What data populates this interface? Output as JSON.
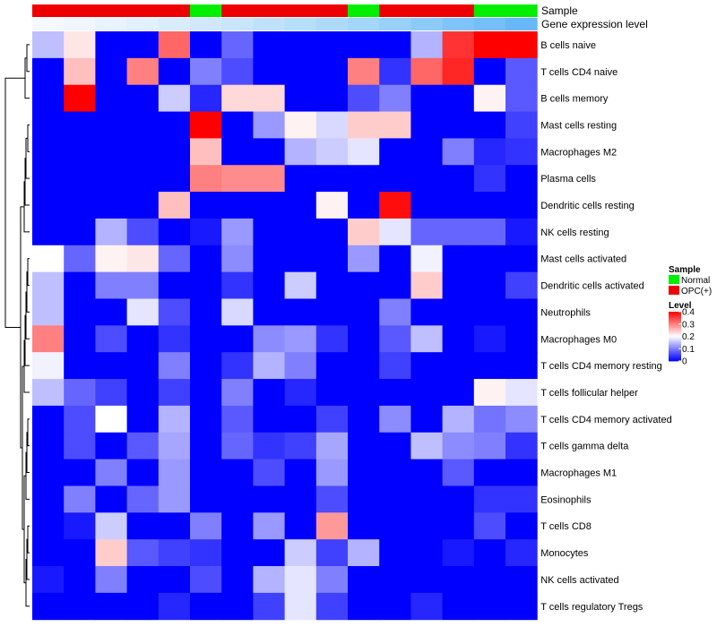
{
  "chart_data": {
    "type": "heatmap",
    "annotation_tracks": [
      "Sample",
      "Gene expression level"
    ],
    "sample_groups": [
      "OPC(+)",
      "OPC(+)",
      "OPC(+)",
      "OPC(+)",
      "OPC(+)",
      "Normal",
      "OPC(+)",
      "OPC(+)",
      "OPC(+)",
      "OPC(+)",
      "Normal",
      "OPC(+)",
      "OPC(+)",
      "OPC(+)",
      "Normal",
      "Normal"
    ],
    "expression_level_colors": [
      "#f4f9ff",
      "#eef6fe",
      "#e7f3fd",
      "#e0f0fc",
      "#d8ecfb",
      "#d0e8fa",
      "#c8e5f9",
      "#c0e2f8",
      "#b6dff8",
      "#aedaf8",
      "#a4d6f8",
      "#98d1f8",
      "#8ccbf8",
      "#7fc4f8",
      "#74bff8",
      "#68b8f8"
    ],
    "rows": [
      "B cells naive",
      "T cells CD4 naive",
      "B cells memory",
      "Mast cells resting",
      "Macrophages M2",
      "Plasma cells",
      "Dendritic cells resting",
      "NK cells resting",
      "Mast cells activated",
      "Dendritic cells activated",
      "Neutrophils",
      "Macrophages M0",
      "T cells CD4 memory resting",
      "T cells follicular helper",
      "T cells CD4 memory activated",
      "T cells gamma delta",
      "Macrophages M1",
      "Eosinophils",
      "T cells CD8",
      "Monocytes",
      "NK cells activated",
      "T cells regulatory  Tregs"
    ],
    "values": [
      [
        0.15,
        0.22,
        0.0,
        0.0,
        0.32,
        0.0,
        0.08,
        0.0,
        0.0,
        0.0,
        0.0,
        0.0,
        0.14,
        0.36,
        0.4,
        0.4
      ],
      [
        0.0,
        0.25,
        0.0,
        0.3,
        0.0,
        0.1,
        0.06,
        0.0,
        0.0,
        0.0,
        0.3,
        0.04,
        0.32,
        0.37,
        0.0,
        0.07
      ],
      [
        0.0,
        0.4,
        0.0,
        0.0,
        0.16,
        0.03,
        0.23,
        0.23,
        0.0,
        0.0,
        0.06,
        0.1,
        0.0,
        0.0,
        0.21,
        0.07
      ],
      [
        0.0,
        0.0,
        0.0,
        0.0,
        0.0,
        0.4,
        0.0,
        0.12,
        0.21,
        0.17,
        0.24,
        0.24,
        0.0,
        0.0,
        0.0,
        0.05
      ],
      [
        0.0,
        0.0,
        0.0,
        0.0,
        0.0,
        0.25,
        0.0,
        0.0,
        0.14,
        0.16,
        0.18,
        0.0,
        0.0,
        0.1,
        0.03,
        0.04
      ],
      [
        0.0,
        0.0,
        0.0,
        0.0,
        0.0,
        0.3,
        0.29,
        0.29,
        0.0,
        0.0,
        0.0,
        0.0,
        0.0,
        0.0,
        0.04,
        0.0
      ],
      [
        0.0,
        0.0,
        0.0,
        0.0,
        0.25,
        0.0,
        0.0,
        0.0,
        0.0,
        0.21,
        0.0,
        0.39,
        0.0,
        0.0,
        0.0,
        0.0
      ],
      [
        0.0,
        0.0,
        0.14,
        0.06,
        0.0,
        0.02,
        0.12,
        0.0,
        0.0,
        0.0,
        0.24,
        0.18,
        0.08,
        0.08,
        0.08,
        0.02
      ],
      [
        0.2,
        0.08,
        0.21,
        0.22,
        0.08,
        0.0,
        0.11,
        0.0,
        0.0,
        0.0,
        0.12,
        0.0,
        0.19,
        0.0,
        0.0,
        0.0
      ],
      [
        0.15,
        0.0,
        0.1,
        0.1,
        0.0,
        0.0,
        0.04,
        0.0,
        0.16,
        0.0,
        0.0,
        0.0,
        0.24,
        0.0,
        0.0,
        0.05
      ],
      [
        0.15,
        0.0,
        0.0,
        0.18,
        0.06,
        0.0,
        0.17,
        0.0,
        0.0,
        0.0,
        0.0,
        0.1,
        0.0,
        0.0,
        0.0,
        0.0
      ],
      [
        0.3,
        0.0,
        0.06,
        0.0,
        0.04,
        0.0,
        0.0,
        0.11,
        0.12,
        0.04,
        0.0,
        0.07,
        0.15,
        0.0,
        0.02,
        0.0
      ],
      [
        0.19,
        0.0,
        0.0,
        0.0,
        0.1,
        0.0,
        0.04,
        0.14,
        0.1,
        0.0,
        0.0,
        0.05,
        0.0,
        0.0,
        0.0,
        0.0
      ],
      [
        0.15,
        0.08,
        0.05,
        0.0,
        0.05,
        0.0,
        0.1,
        0.0,
        0.03,
        0.0,
        0.0,
        0.0,
        0.0,
        0.0,
        0.21,
        0.18
      ],
      [
        0.0,
        0.06,
        0.2,
        0.0,
        0.14,
        0.0,
        0.07,
        0.0,
        0.0,
        0.05,
        0.0,
        0.11,
        0.0,
        0.14,
        0.09,
        0.11
      ],
      [
        0.0,
        0.06,
        0.0,
        0.07,
        0.13,
        0.0,
        0.08,
        0.04,
        0.05,
        0.13,
        0.0,
        0.0,
        0.15,
        0.11,
        0.1,
        0.04
      ],
      [
        0.0,
        0.0,
        0.1,
        0.0,
        0.12,
        0.0,
        0.0,
        0.06,
        0.0,
        0.12,
        0.0,
        0.0,
        0.0,
        0.07,
        0.0,
        0.0
      ],
      [
        0.0,
        0.1,
        0.0,
        0.08,
        0.12,
        0.0,
        0.0,
        0.0,
        0.0,
        0.06,
        0.0,
        0.0,
        0.0,
        0.0,
        0.04,
        0.04
      ],
      [
        0.0,
        0.02,
        0.16,
        0.0,
        0.0,
        0.1,
        0.0,
        0.12,
        0.0,
        0.28,
        0.0,
        0.0,
        0.0,
        0.0,
        0.06,
        0.0
      ],
      [
        0.0,
        0.0,
        0.24,
        0.07,
        0.05,
        0.04,
        0.0,
        0.0,
        0.16,
        0.05,
        0.14,
        0.0,
        0.0,
        0.02,
        0.0,
        0.03
      ],
      [
        0.02,
        0.0,
        0.1,
        0.0,
        0.0,
        0.06,
        0.0,
        0.14,
        0.18,
        0.1,
        0.0,
        0.0,
        0.0,
        0.0,
        0.0,
        0.0
      ],
      [
        0.0,
        0.0,
        0.0,
        0.0,
        0.03,
        0.0,
        0.0,
        0.05,
        0.18,
        0.05,
        0.0,
        0.0,
        0.03,
        0.0,
        0.0,
        0.0
      ]
    ],
    "color_scale": {
      "min": 0,
      "max": 0.4,
      "low": "#0000ff",
      "mid": "#ffffff",
      "high": "#ff0000",
      "mid_value": 0.2
    },
    "legend": {
      "sample_title": "Sample",
      "sample_items": [
        {
          "label": "Normal",
          "color": "#00ee00"
        },
        {
          "label": "OPC(+)",
          "color": "#ee0000"
        }
      ],
      "level_title": "Level",
      "level_ticks": [
        "0.4",
        "0.3",
        "0.2",
        "0.1",
        "0"
      ],
      "placement": "right"
    },
    "row_dendrogram": true,
    "column_dendrogram": false
  }
}
